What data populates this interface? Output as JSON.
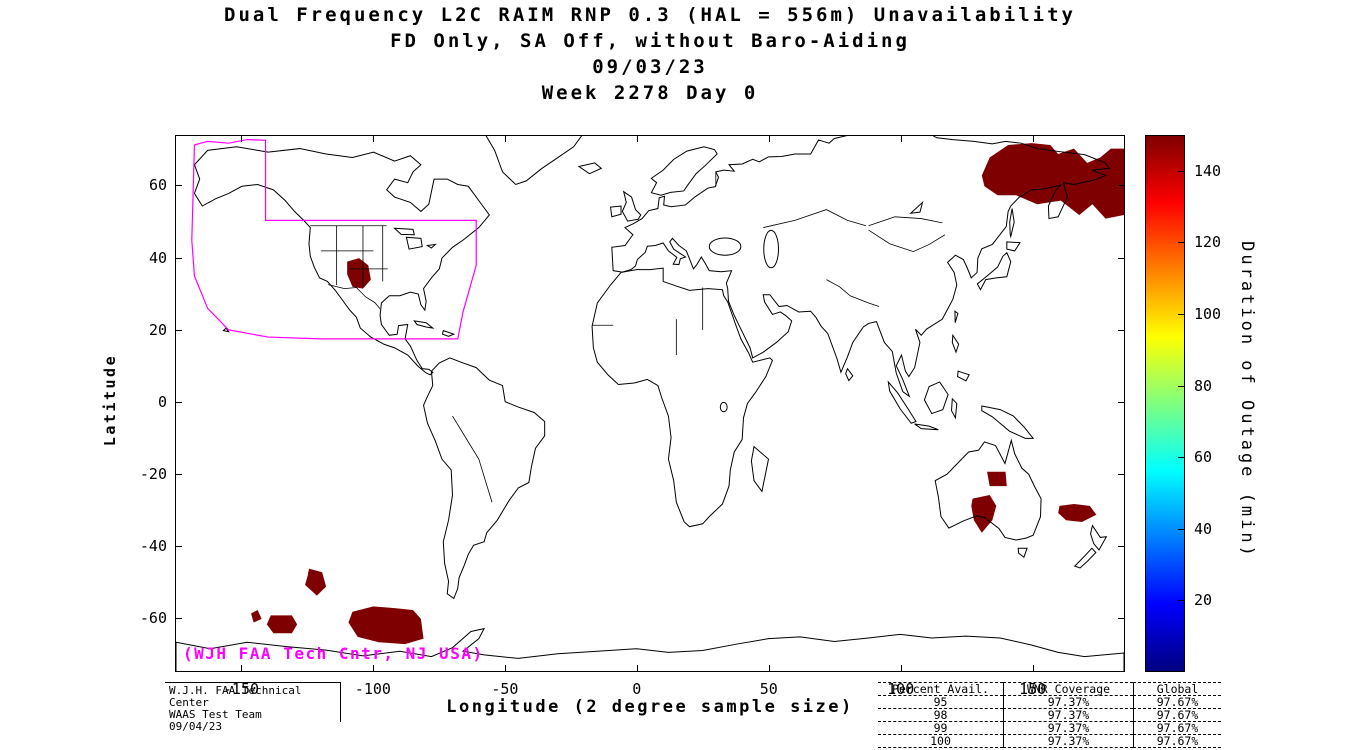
{
  "title": {
    "line1": "Dual Frequency L2C RAIM RNP 0.3 (HAL = 556m) Unavailability",
    "line2": "FD Only, SA Off, without Baro-Aiding",
    "line3": "09/03/23",
    "line4": "Week 2278 Day 0"
  },
  "axes": {
    "xlabel": "Longitude (2 degree sample size)",
    "ylabel": "Latitude",
    "x_ticks": [
      -150,
      -100,
      -50,
      0,
      50,
      100,
      150
    ],
    "y_ticks": [
      -60,
      -40,
      -20,
      0,
      20,
      40,
      60
    ],
    "lon_range": [
      -175,
      185
    ],
    "lat_range": [
      -75,
      74
    ]
  },
  "colorbar": {
    "label": "Duration of Outage (min)",
    "ticks": [
      20,
      40,
      60,
      80,
      100,
      120,
      140
    ],
    "range": [
      0,
      150
    ],
    "colormap": "jet"
  },
  "annotations": {
    "waas_credit": "(WJH FAA Tech Cntr, NJ USA)",
    "waas_color": "#FF00FF"
  },
  "footer": {
    "lines": [
      "W.J.H. FAA Technical Center",
      "WAAS Test Team",
      "09/04/23"
    ]
  },
  "stats_table": {
    "headers": [
      "Percent Avail.",
      "WNR Coverage",
      "Global"
    ],
    "rows": [
      [
        "95",
        "97.37%",
        "97.67%"
      ],
      [
        "98",
        "97.37%",
        "97.67%"
      ],
      [
        "99",
        "97.37%",
        "97.67%"
      ],
      [
        "100",
        "97.37%",
        "97.67%"
      ]
    ]
  },
  "chart_data": {
    "type": "heatmap",
    "projection": "equirectangular-world-map",
    "title": "Dual Frequency L2C RAIM RNP 0.3 (HAL = 556m) Unavailability",
    "value_label": "Duration of Outage (min)",
    "value_range": [
      0,
      150
    ],
    "outage_color": "#7F0000",
    "sample_size_deg": 2,
    "regions": [
      {
        "name": "northeast-russia",
        "duration_min": 150,
        "polygon": [
          [
            131,
            63
          ],
          [
            134,
            68
          ],
          [
            141,
            71.5
          ],
          [
            150,
            72
          ],
          [
            157,
            71.5
          ],
          [
            160,
            69
          ],
          [
            166,
            70.5
          ],
          [
            171,
            66.5
          ],
          [
            176,
            68
          ],
          [
            180,
            70.5
          ],
          [
            185,
            70.5
          ],
          [
            185,
            52
          ],
          [
            178,
            51
          ],
          [
            173,
            55
          ],
          [
            168,
            52
          ],
          [
            161,
            56
          ],
          [
            152,
            55
          ],
          [
            144,
            57.5
          ],
          [
            137,
            57.5
          ],
          [
            132,
            60
          ]
        ]
      },
      {
        "name": "us-four-corners",
        "duration_min": 150,
        "polygon": [
          [
            -110,
            39
          ],
          [
            -105.5,
            40
          ],
          [
            -102,
            38
          ],
          [
            -101,
            34
          ],
          [
            -104,
            31.5
          ],
          [
            -108,
            32
          ],
          [
            -110,
            35.5
          ]
        ]
      },
      {
        "name": "south-pacific-1",
        "duration_min": 150,
        "polygon": [
          [
            -124.5,
            -46.5
          ],
          [
            -119.5,
            -47.5
          ],
          [
            -118,
            -51.5
          ],
          [
            -121.5,
            -54
          ],
          [
            -126,
            -51
          ],
          [
            -125,
            -48.5
          ]
        ]
      },
      {
        "name": "south-pacific-2",
        "duration_min": 150,
        "polygon": [
          [
            -146.5,
            -59
          ],
          [
            -144,
            -58
          ],
          [
            -142.5,
            -60.5
          ],
          [
            -145.5,
            -61.5
          ]
        ]
      },
      {
        "name": "south-pacific-3",
        "duration_min": 150,
        "polygon": [
          [
            -139,
            -59.5
          ],
          [
            -131,
            -59.5
          ],
          [
            -129,
            -62
          ],
          [
            -131,
            -64.5
          ],
          [
            -138,
            -64.5
          ],
          [
            -140.5,
            -62
          ]
        ]
      },
      {
        "name": "south-pacific-4",
        "duration_min": 150,
        "polygon": [
          [
            -108,
            -58.5
          ],
          [
            -100,
            -57
          ],
          [
            -92,
            -57.5
          ],
          [
            -85,
            -58
          ],
          [
            -82,
            -60.5
          ],
          [
            -81,
            -66
          ],
          [
            -88,
            -67.5
          ],
          [
            -98,
            -67
          ],
          [
            -106,
            -65.5
          ],
          [
            -109.5,
            -61.5
          ]
        ]
      },
      {
        "name": "australia-north",
        "duration_min": 150,
        "polygon": [
          [
            133,
            -19.5
          ],
          [
            140,
            -19.5
          ],
          [
            140.5,
            -23.5
          ],
          [
            134,
            -23.5
          ]
        ]
      },
      {
        "name": "australia-south",
        "duration_min": 150,
        "polygon": [
          [
            127.5,
            -27
          ],
          [
            134,
            -26
          ],
          [
            136.5,
            -29
          ],
          [
            135,
            -33
          ],
          [
            131,
            -36.5
          ],
          [
            128,
            -33
          ],
          [
            127,
            -29
          ]
        ]
      },
      {
        "name": "tasman-sea",
        "duration_min": 150,
        "polygon": [
          [
            160.5,
            -29
          ],
          [
            166,
            -28.5
          ],
          [
            172,
            -29
          ],
          [
            174.5,
            -31.5
          ],
          [
            169,
            -33.5
          ],
          [
            163,
            -33
          ],
          [
            160,
            -31
          ]
        ]
      }
    ],
    "waas_boundary": [
      [
        -168,
        71.5
      ],
      [
        -163,
        72.5
      ],
      [
        -155,
        72
      ],
      [
        -148,
        73
      ],
      [
        -141,
        72.8
      ],
      [
        -141,
        50.5
      ],
      [
        -61,
        50.5
      ],
      [
        -61,
        38
      ],
      [
        -66,
        25
      ],
      [
        -68,
        17.5
      ],
      [
        -120,
        17.5
      ],
      [
        -140,
        18
      ],
      [
        -155,
        20
      ],
      [
        -163,
        26
      ],
      [
        -168,
        35
      ],
      [
        -169,
        45
      ]
    ]
  }
}
